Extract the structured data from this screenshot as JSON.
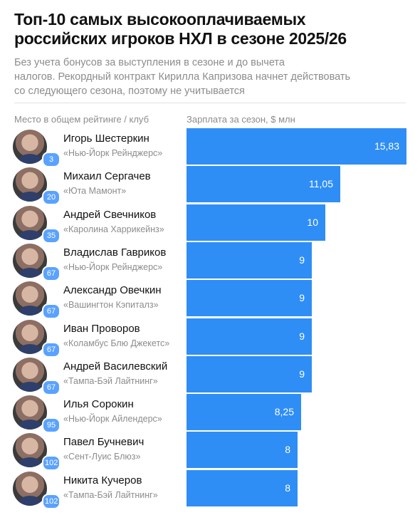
{
  "header": {
    "title_line1": "Топ-10 самых высокооплачиваемых",
    "title_line2": "российских игроков НХЛ в сезоне 2025/26",
    "subtitle_line1": "Без учета бонусов за выступления в сезоне и до вычета",
    "subtitle_line2": "налогов. Рекордный контракт Кирилла Капризова начнет действовать",
    "subtitle_line3": "со следующего сезона, поэтому не учитывается",
    "left_column_label": "Место в общем рейтинге / клуб",
    "right_column_label": "Зарплата за сезон, $ млн"
  },
  "colors": {
    "bar": "#2f8ef5",
    "badge": "#5aa2ff",
    "muted_text": "#8c8c8c"
  },
  "chart_data": {
    "type": "bar",
    "orientation": "horizontal",
    "xlabel": "Зарплата за сезон, $ млн",
    "xlim": [
      0,
      15.83
    ],
    "grid": false,
    "legend": "none",
    "categories": [
      "Игорь Шестеркин",
      "Михаил Сергачев",
      "Андрей Свечников",
      "Владислав Гавриков",
      "Александр Овечкин",
      "Иван Проворов",
      "Андрей Василевский",
      "Илья Сорокин",
      "Павел Бучневич",
      "Никита Кучеров"
    ],
    "values": [
      15.83,
      11.05,
      10,
      9,
      9,
      9,
      9,
      8.25,
      8,
      8
    ],
    "rows": [
      {
        "name": "Игорь Шестеркин",
        "club": "«Нью-Йорк Рейнджерс»",
        "rank": "3",
        "value": 15.83,
        "label": "15,83"
      },
      {
        "name": "Михаил Сергачев",
        "club": "«Юта Мамонт»",
        "rank": "20",
        "value": 11.05,
        "label": "11,05"
      },
      {
        "name": "Андрей Свечников",
        "club": "«Каролина Харрикейнз»",
        "rank": "35",
        "value": 10,
        "label": "10"
      },
      {
        "name": "Владислав Гавриков",
        "club": "«Нью-Йорк Рейнджерс»",
        "rank": "67",
        "value": 9,
        "label": "9"
      },
      {
        "name": "Александр Овечкин",
        "club": "«Вашингтон Кэпиталз»",
        "rank": "67",
        "value": 9,
        "label": "9"
      },
      {
        "name": "Иван Проворов",
        "club": "«Коламбус Блю Джекетс»",
        "rank": "67",
        "value": 9,
        "label": "9"
      },
      {
        "name": "Андрей Василевский",
        "club": "«Тампа-Бэй Лайтнинг»",
        "rank": "67",
        "value": 9,
        "label": "9"
      },
      {
        "name": "Илья Сорокин",
        "club": "«Нью-Йорк Айлендерс»",
        "rank": "95",
        "value": 8.25,
        "label": "8,25"
      },
      {
        "name": "Павел Бучневич",
        "club": "«Сент-Луис Блюз»",
        "rank": "102",
        "value": 8,
        "label": "8"
      },
      {
        "name": "Никита Кучеров",
        "club": "«Тампа-Бэй Лайтнинг»",
        "rank": "102",
        "value": 8,
        "label": "8"
      }
    ]
  }
}
